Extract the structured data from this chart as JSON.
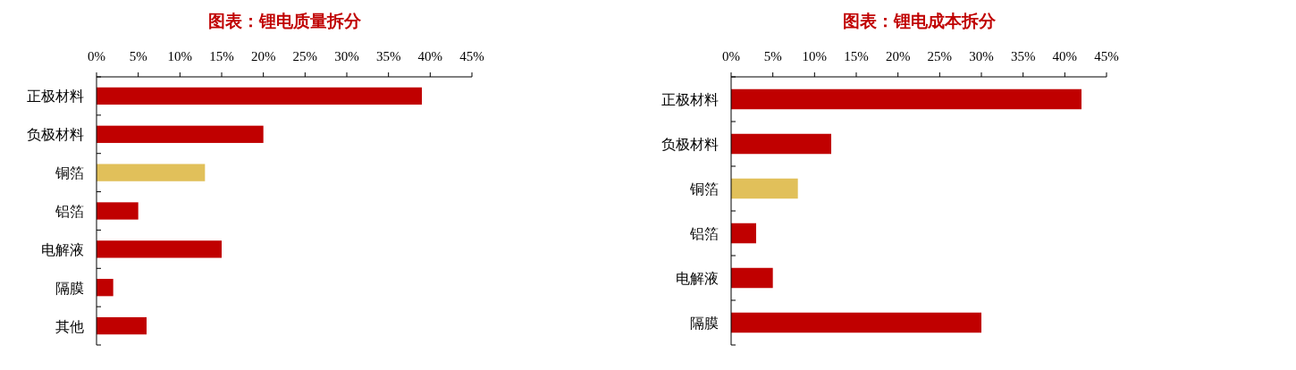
{
  "chart_data": [
    {
      "type": "bar",
      "orientation": "horizontal",
      "title": "图表：锂电质量拆分",
      "categories": [
        "正极材料",
        "负极材料",
        "铜箔",
        "铝箔",
        "电解液",
        "隔膜",
        "其他"
      ],
      "values": [
        39,
        20,
        13,
        5,
        15,
        2,
        6
      ],
      "colors": [
        "#c00000",
        "#c00000",
        "#e1c05a",
        "#c00000",
        "#c00000",
        "#c00000",
        "#c00000"
      ],
      "xlim": [
        0,
        45
      ],
      "xticks": [
        {
          "value": 0,
          "label": "0%"
        },
        {
          "value": 5,
          "label": "5%"
        },
        {
          "value": 10,
          "label": "10%"
        },
        {
          "value": 15,
          "label": "15%"
        },
        {
          "value": 20,
          "label": "20%"
        },
        {
          "value": 25,
          "label": "25%"
        },
        {
          "value": 30,
          "label": "30%"
        },
        {
          "value": 35,
          "label": "35%"
        },
        {
          "value": 40,
          "label": "40%"
        },
        {
          "value": 45,
          "label": "45%"
        }
      ],
      "grid": false
    },
    {
      "type": "bar",
      "orientation": "horizontal",
      "title": "图表：锂电成本拆分",
      "categories": [
        "正极材料",
        "负极材料",
        "铜箔",
        "铝箔",
        "电解液",
        "隔膜"
      ],
      "values": [
        42,
        12,
        8,
        3,
        5,
        30
      ],
      "colors": [
        "#c00000",
        "#c00000",
        "#e1c05a",
        "#c00000",
        "#c00000",
        "#c00000"
      ],
      "xlim": [
        0,
        45
      ],
      "xticks": [
        {
          "value": 0,
          "label": "0%"
        },
        {
          "value": 5,
          "label": "5%"
        },
        {
          "value": 10,
          "label": "10%"
        },
        {
          "value": 15,
          "label": "15%"
        },
        {
          "value": 20,
          "label": "20%"
        },
        {
          "value": 25,
          "label": "25%"
        },
        {
          "value": 30,
          "label": "30%"
        },
        {
          "value": 35,
          "label": "35%"
        },
        {
          "value": 40,
          "label": "40%"
        },
        {
          "value": 45,
          "label": "45%"
        }
      ],
      "grid": false
    }
  ]
}
